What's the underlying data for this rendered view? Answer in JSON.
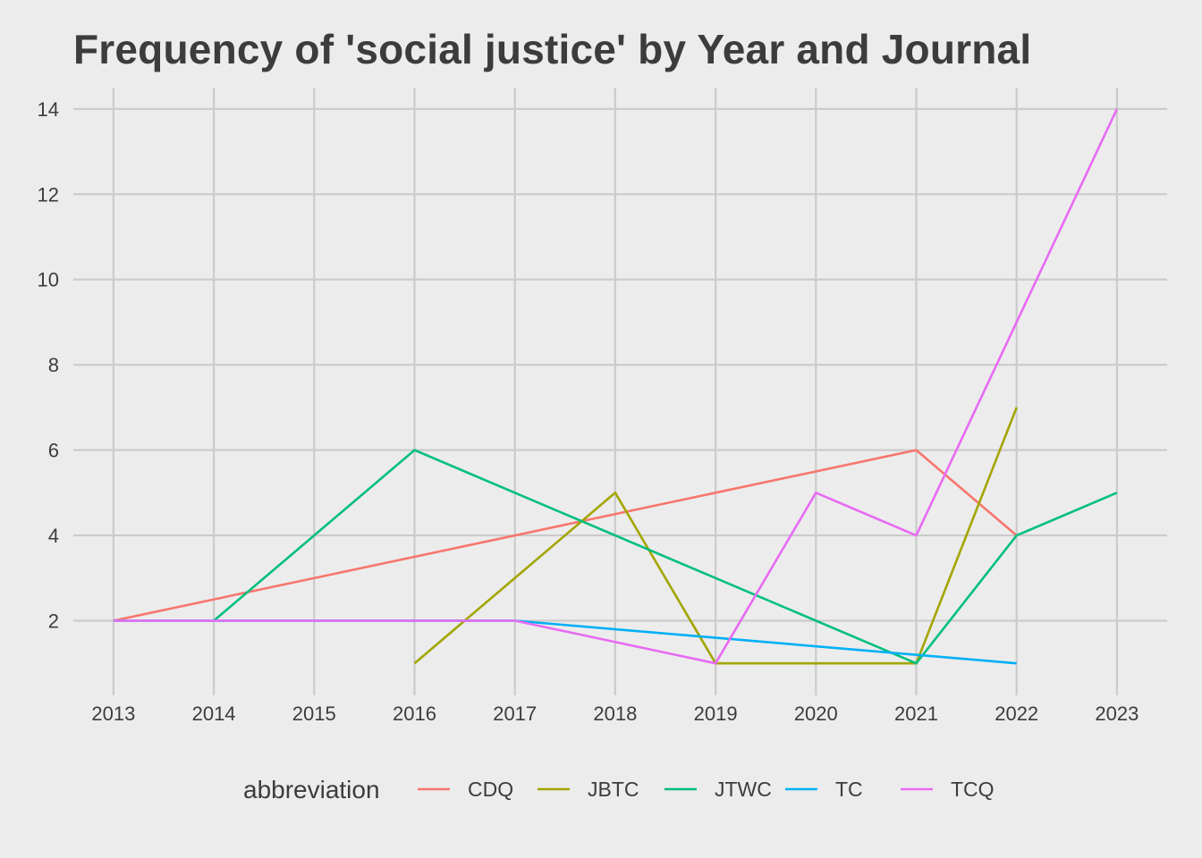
{
  "chart_data": {
    "type": "line",
    "title": "Frequency of 'social justice' by Year and Journal",
    "xlabel": "",
    "ylabel": "",
    "x_ticks": [
      "2013",
      "2014",
      "2015",
      "2016",
      "2017",
      "2018",
      "2019",
      "2020",
      "2021",
      "2022",
      "2023"
    ],
    "y_ticks": [
      "2",
      "4",
      "6",
      "8",
      "10",
      "12",
      "14"
    ],
    "xlim": [
      2012.6,
      2023.5
    ],
    "ylim": [
      0.25,
      14.5
    ],
    "grid": true,
    "legend": {
      "title": "abbreviation",
      "placement": "bottom"
    },
    "series": [
      {
        "name": "CDQ",
        "color": "#f8766d",
        "x": [
          2013,
          2017,
          2019,
          2021,
          2022
        ],
        "y": [
          2,
          4,
          5,
          6,
          4
        ]
      },
      {
        "name": "JBTC",
        "color": "#a3a500",
        "x": [
          2016,
          2018,
          2019,
          2021,
          2022
        ],
        "y": [
          1,
          5,
          1,
          1,
          7
        ]
      },
      {
        "name": "JTWC",
        "color": "#00bf7d",
        "x": [
          2014,
          2016,
          2018,
          2021,
          2022,
          2023
        ],
        "y": [
          2,
          6,
          4,
          1,
          4,
          5
        ]
      },
      {
        "name": "TC",
        "color": "#00b0f6",
        "x": [
          2013,
          2017,
          2022
        ],
        "y": [
          2,
          2,
          1
        ]
      },
      {
        "name": "TCQ",
        "color": "#e76bf3",
        "x": [
          2013,
          2017,
          2019,
          2020,
          2021,
          2023
        ],
        "y": [
          2,
          2,
          1,
          5,
          4,
          14
        ]
      }
    ]
  }
}
